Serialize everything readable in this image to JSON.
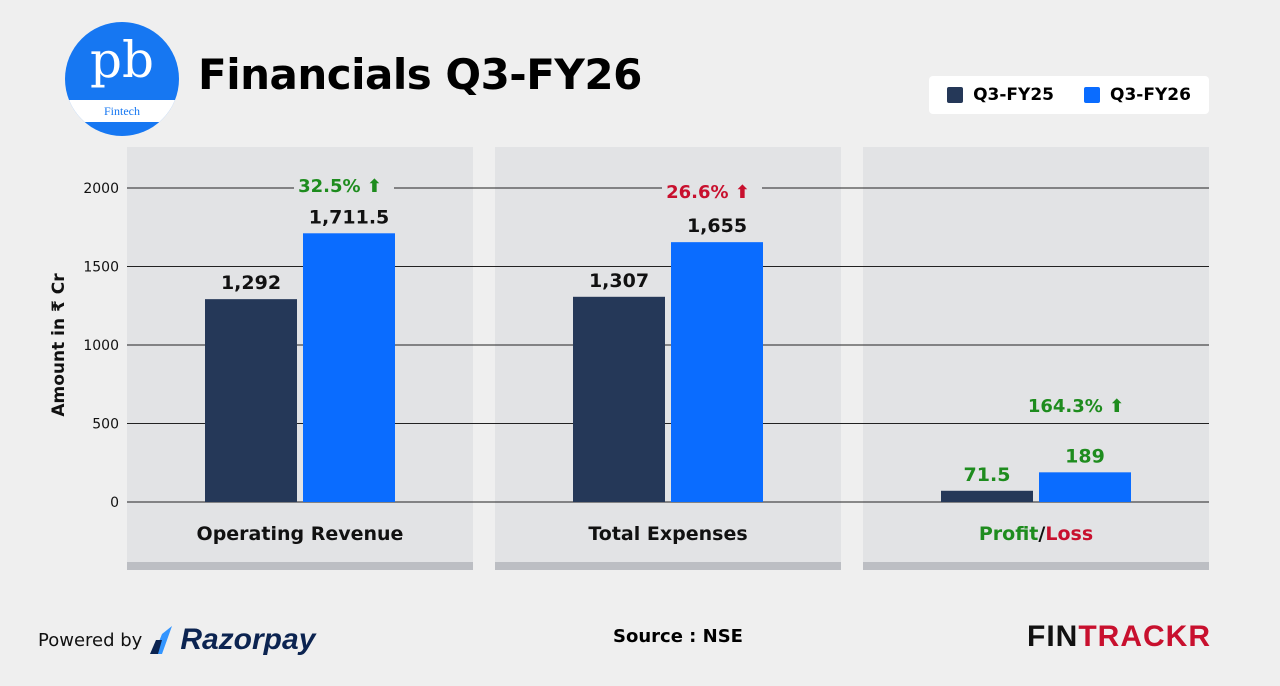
{
  "header": {
    "title": "Financials Q3-FY26",
    "logo_text": "pb",
    "logo_subtext": "Fintech"
  },
  "legend": [
    {
      "label": "Q3-FY25",
      "color": "#253858"
    },
    {
      "label": "Q3-FY26",
      "color": "#0a6cff"
    }
  ],
  "footer": {
    "powered_by": "Powered by",
    "brand": "Razorpay",
    "source": "Source : NSE",
    "fintrackr_a": "FIN",
    "fintrackr_b": "TRACKR"
  },
  "chart_data": {
    "type": "bar",
    "ylabel": "Amount in ₹ Cr",
    "ylim": [
      0,
      2000
    ],
    "yticks": [
      0,
      500,
      1000,
      1500,
      2000
    ],
    "grid": true,
    "legend_placement": "top-right",
    "categories": [
      "Operating Revenue",
      "Total Expenses",
      "Profit/Loss"
    ],
    "series": [
      {
        "name": "Q3-FY25",
        "color": "#253858",
        "values": [
          1292,
          1307,
          71.5
        ],
        "labels": [
          "1,292",
          "1,307",
          "71.5"
        ]
      },
      {
        "name": "Q3-FY26",
        "color": "#0a6cff",
        "values": [
          1711.5,
          1655,
          189
        ],
        "labels": [
          "1,711.5",
          "1,655",
          "189"
        ]
      }
    ],
    "growth": [
      {
        "text": "32.5%",
        "color": "#1e8c1e"
      },
      {
        "text": "26.6%",
        "color": "#c8102e"
      },
      {
        "text": "164.3%",
        "color": "#1e8c1e"
      }
    ],
    "category_label_parts": {
      "profit": "Profit",
      "sep": "/",
      "loss": "Loss"
    },
    "colors": {
      "green": "#1e8c1e",
      "red": "#c8102e"
    }
  }
}
